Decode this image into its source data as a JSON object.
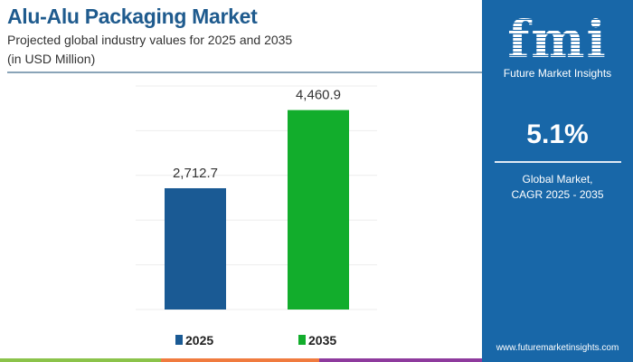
{
  "header": {
    "title": "Alu-Alu Packaging Market",
    "subtitle": "Projected global industry values for 2025 and 2035",
    "unit": "(in USD Million)"
  },
  "chart_data": {
    "type": "bar",
    "categories": [
      "2025",
      "2035"
    ],
    "values": [
      2712.7,
      4460.9
    ],
    "value_labels": [
      "2,712.7",
      "4,460.9"
    ],
    "colors": [
      "#1a5a94",
      "#12ad2c"
    ],
    "legend": [
      "2025",
      "2035"
    ],
    "legend_placement": "bottom",
    "ylim": [
      0,
      5000
    ],
    "grid": true
  },
  "panel": {
    "brand_logo": "fmi",
    "brand_name": "Future Market Insights",
    "cagr": "5.1%",
    "cagr_label_1": "Global Market,",
    "cagr_label_2": "CAGR 2025 - 2035",
    "url": "www.futuremarketinsights.com"
  },
  "strip_colors": [
    "#8bc34a",
    "#f07b3f",
    "#8e3a9d"
  ]
}
